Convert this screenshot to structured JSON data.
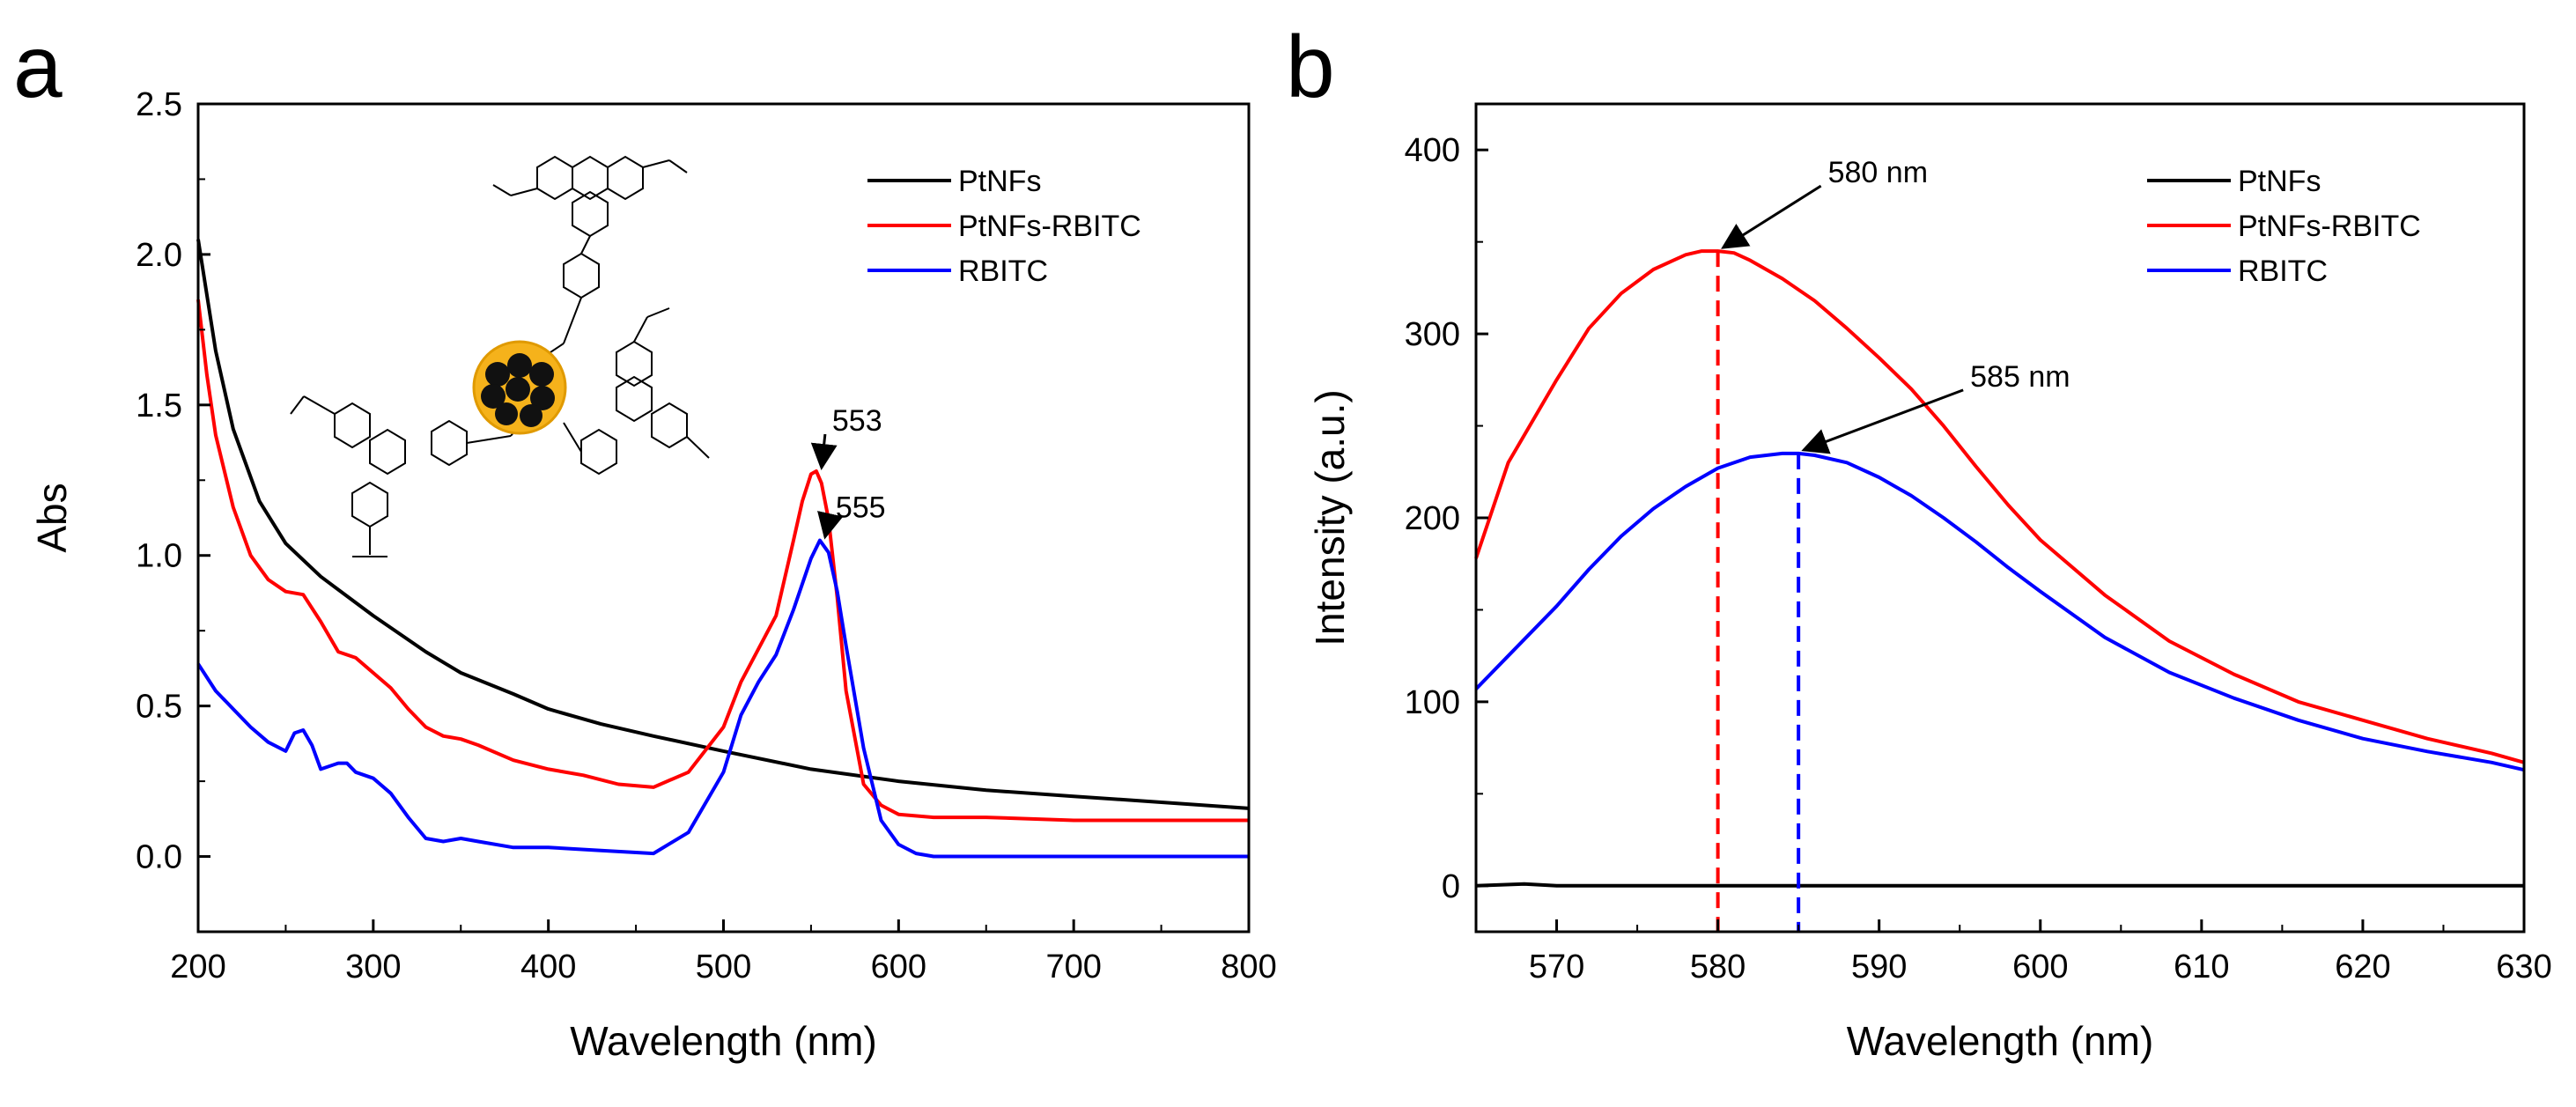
{
  "chart_data": [
    {
      "panel": "a",
      "type": "line",
      "xlabel": "Wavelength (nm)",
      "ylabel": "Abs",
      "xlim": [
        200,
        800
      ],
      "ylim": [
        -0.25,
        2.5
      ],
      "xticks": [
        200,
        300,
        400,
        500,
        600,
        700,
        800
      ],
      "yticks": [
        0.0,
        0.5,
        1.0,
        1.5,
        2.0,
        2.5
      ],
      "ytick_labels": [
        "0.0",
        "0.5",
        "1.0",
        "1.5",
        "2.0",
        "2.5"
      ],
      "legend_position": "top-right",
      "series": [
        {
          "name": "PtNFs",
          "color": "#000000",
          "x": [
            200,
            210,
            220,
            235,
            250,
            270,
            300,
            330,
            350,
            380,
            400,
            430,
            460,
            500,
            550,
            600,
            650,
            700,
            750,
            800
          ],
          "y": [
            2.05,
            1.68,
            1.42,
            1.18,
            1.04,
            0.93,
            0.8,
            0.68,
            0.61,
            0.54,
            0.49,
            0.44,
            0.4,
            0.35,
            0.29,
            0.25,
            0.22,
            0.2,
            0.18,
            0.16
          ]
        },
        {
          "name": "PtNFs-RBITC",
          "color": "#ff0000",
          "x": [
            200,
            205,
            210,
            220,
            230,
            240,
            250,
            260,
            270,
            280,
            290,
            300,
            310,
            320,
            330,
            340,
            350,
            360,
            380,
            400,
            420,
            440,
            460,
            480,
            500,
            510,
            520,
            530,
            540,
            545,
            550,
            553,
            556,
            560,
            565,
            570,
            580,
            590,
            600,
            620,
            650,
            700,
            750,
            800
          ],
          "y": [
            1.85,
            1.6,
            1.4,
            1.16,
            1.0,
            0.92,
            0.88,
            0.87,
            0.78,
            0.68,
            0.66,
            0.61,
            0.56,
            0.49,
            0.43,
            0.4,
            0.39,
            0.37,
            0.32,
            0.29,
            0.27,
            0.24,
            0.23,
            0.28,
            0.43,
            0.58,
            0.69,
            0.8,
            1.05,
            1.18,
            1.27,
            1.28,
            1.24,
            1.12,
            0.86,
            0.55,
            0.24,
            0.17,
            0.14,
            0.13,
            0.13,
            0.12,
            0.12,
            0.12
          ]
        },
        {
          "name": "RBITC",
          "color": "#0000ff",
          "x": [
            200,
            210,
            220,
            230,
            240,
            250,
            255,
            260,
            265,
            270,
            280,
            285,
            290,
            300,
            310,
            320,
            330,
            340,
            350,
            360,
            380,
            400,
            430,
            460,
            480,
            500,
            510,
            520,
            530,
            540,
            550,
            555,
            560,
            565,
            570,
            580,
            590,
            600,
            610,
            620,
            650,
            700,
            750,
            800
          ],
          "y": [
            0.64,
            0.55,
            0.49,
            0.43,
            0.38,
            0.35,
            0.41,
            0.42,
            0.37,
            0.29,
            0.31,
            0.31,
            0.28,
            0.26,
            0.21,
            0.13,
            0.06,
            0.05,
            0.06,
            0.05,
            0.03,
            0.03,
            0.02,
            0.01,
            0.08,
            0.28,
            0.47,
            0.58,
            0.67,
            0.82,
            0.99,
            1.05,
            1.01,
            0.88,
            0.7,
            0.36,
            0.12,
            0.04,
            0.01,
            0.0,
            0.0,
            0.0,
            0.0,
            0.0
          ]
        }
      ],
      "annotations": [
        {
          "text": "553",
          "x": 553,
          "y": 1.28
        },
        {
          "text": "555",
          "x": 555,
          "y": 1.05
        }
      ]
    },
    {
      "panel": "b",
      "type": "line",
      "xlabel": "Wavelength (nm)",
      "ylabel": "Intensity (a.u.)",
      "xlim": [
        565,
        630
      ],
      "ylim": [
        -25,
        425
      ],
      "xticks": [
        570,
        580,
        590,
        600,
        610,
        620,
        630
      ],
      "yticks": [
        0,
        100,
        200,
        300,
        400
      ],
      "legend_position": "top-right",
      "series": [
        {
          "name": "PtNFs",
          "color": "#000000",
          "x": [
            565,
            568,
            570,
            575,
            580,
            590,
            600,
            610,
            620,
            630
          ],
          "y": [
            0,
            1,
            0,
            0,
            0,
            0,
            0,
            0,
            0,
            0
          ]
        },
        {
          "name": "PtNFs-RBITC",
          "color": "#ff0000",
          "x": [
            565,
            567,
            570,
            572,
            574,
            576,
            578,
            579,
            580,
            581,
            582,
            584,
            586,
            588,
            590,
            592,
            594,
            596,
            598,
            600,
            604,
            608,
            612,
            616,
            620,
            624,
            628,
            630
          ],
          "y": [
            178,
            230,
            275,
            303,
            322,
            335,
            343,
            345,
            345,
            344,
            340,
            330,
            318,
            303,
            287,
            270,
            250,
            228,
            207,
            188,
            158,
            133,
            115,
            100,
            90,
            80,
            72,
            67
          ]
        },
        {
          "name": "RBITC",
          "color": "#0000ff",
          "x": [
            565,
            567,
            570,
            572,
            574,
            576,
            578,
            580,
            582,
            584,
            585,
            586,
            588,
            590,
            592,
            594,
            596,
            598,
            600,
            604,
            608,
            612,
            616,
            620,
            624,
            628,
            630
          ],
          "y": [
            107,
            125,
            152,
            172,
            190,
            205,
            217,
            227,
            233,
            235,
            235,
            234,
            230,
            222,
            212,
            200,
            187,
            173,
            160,
            135,
            116,
            102,
            90,
            80,
            73,
            67,
            63
          ]
        }
      ],
      "reference_lines": [
        {
          "x": 580,
          "y": 345,
          "color": "#ff0000"
        },
        {
          "x": 585,
          "y": 235,
          "color": "#0000ff"
        }
      ],
      "annotations": [
        {
          "text": "580 nm",
          "x": 580,
          "y": 345
        },
        {
          "text": "585 nm",
          "x": 585,
          "y": 235
        }
      ]
    }
  ]
}
